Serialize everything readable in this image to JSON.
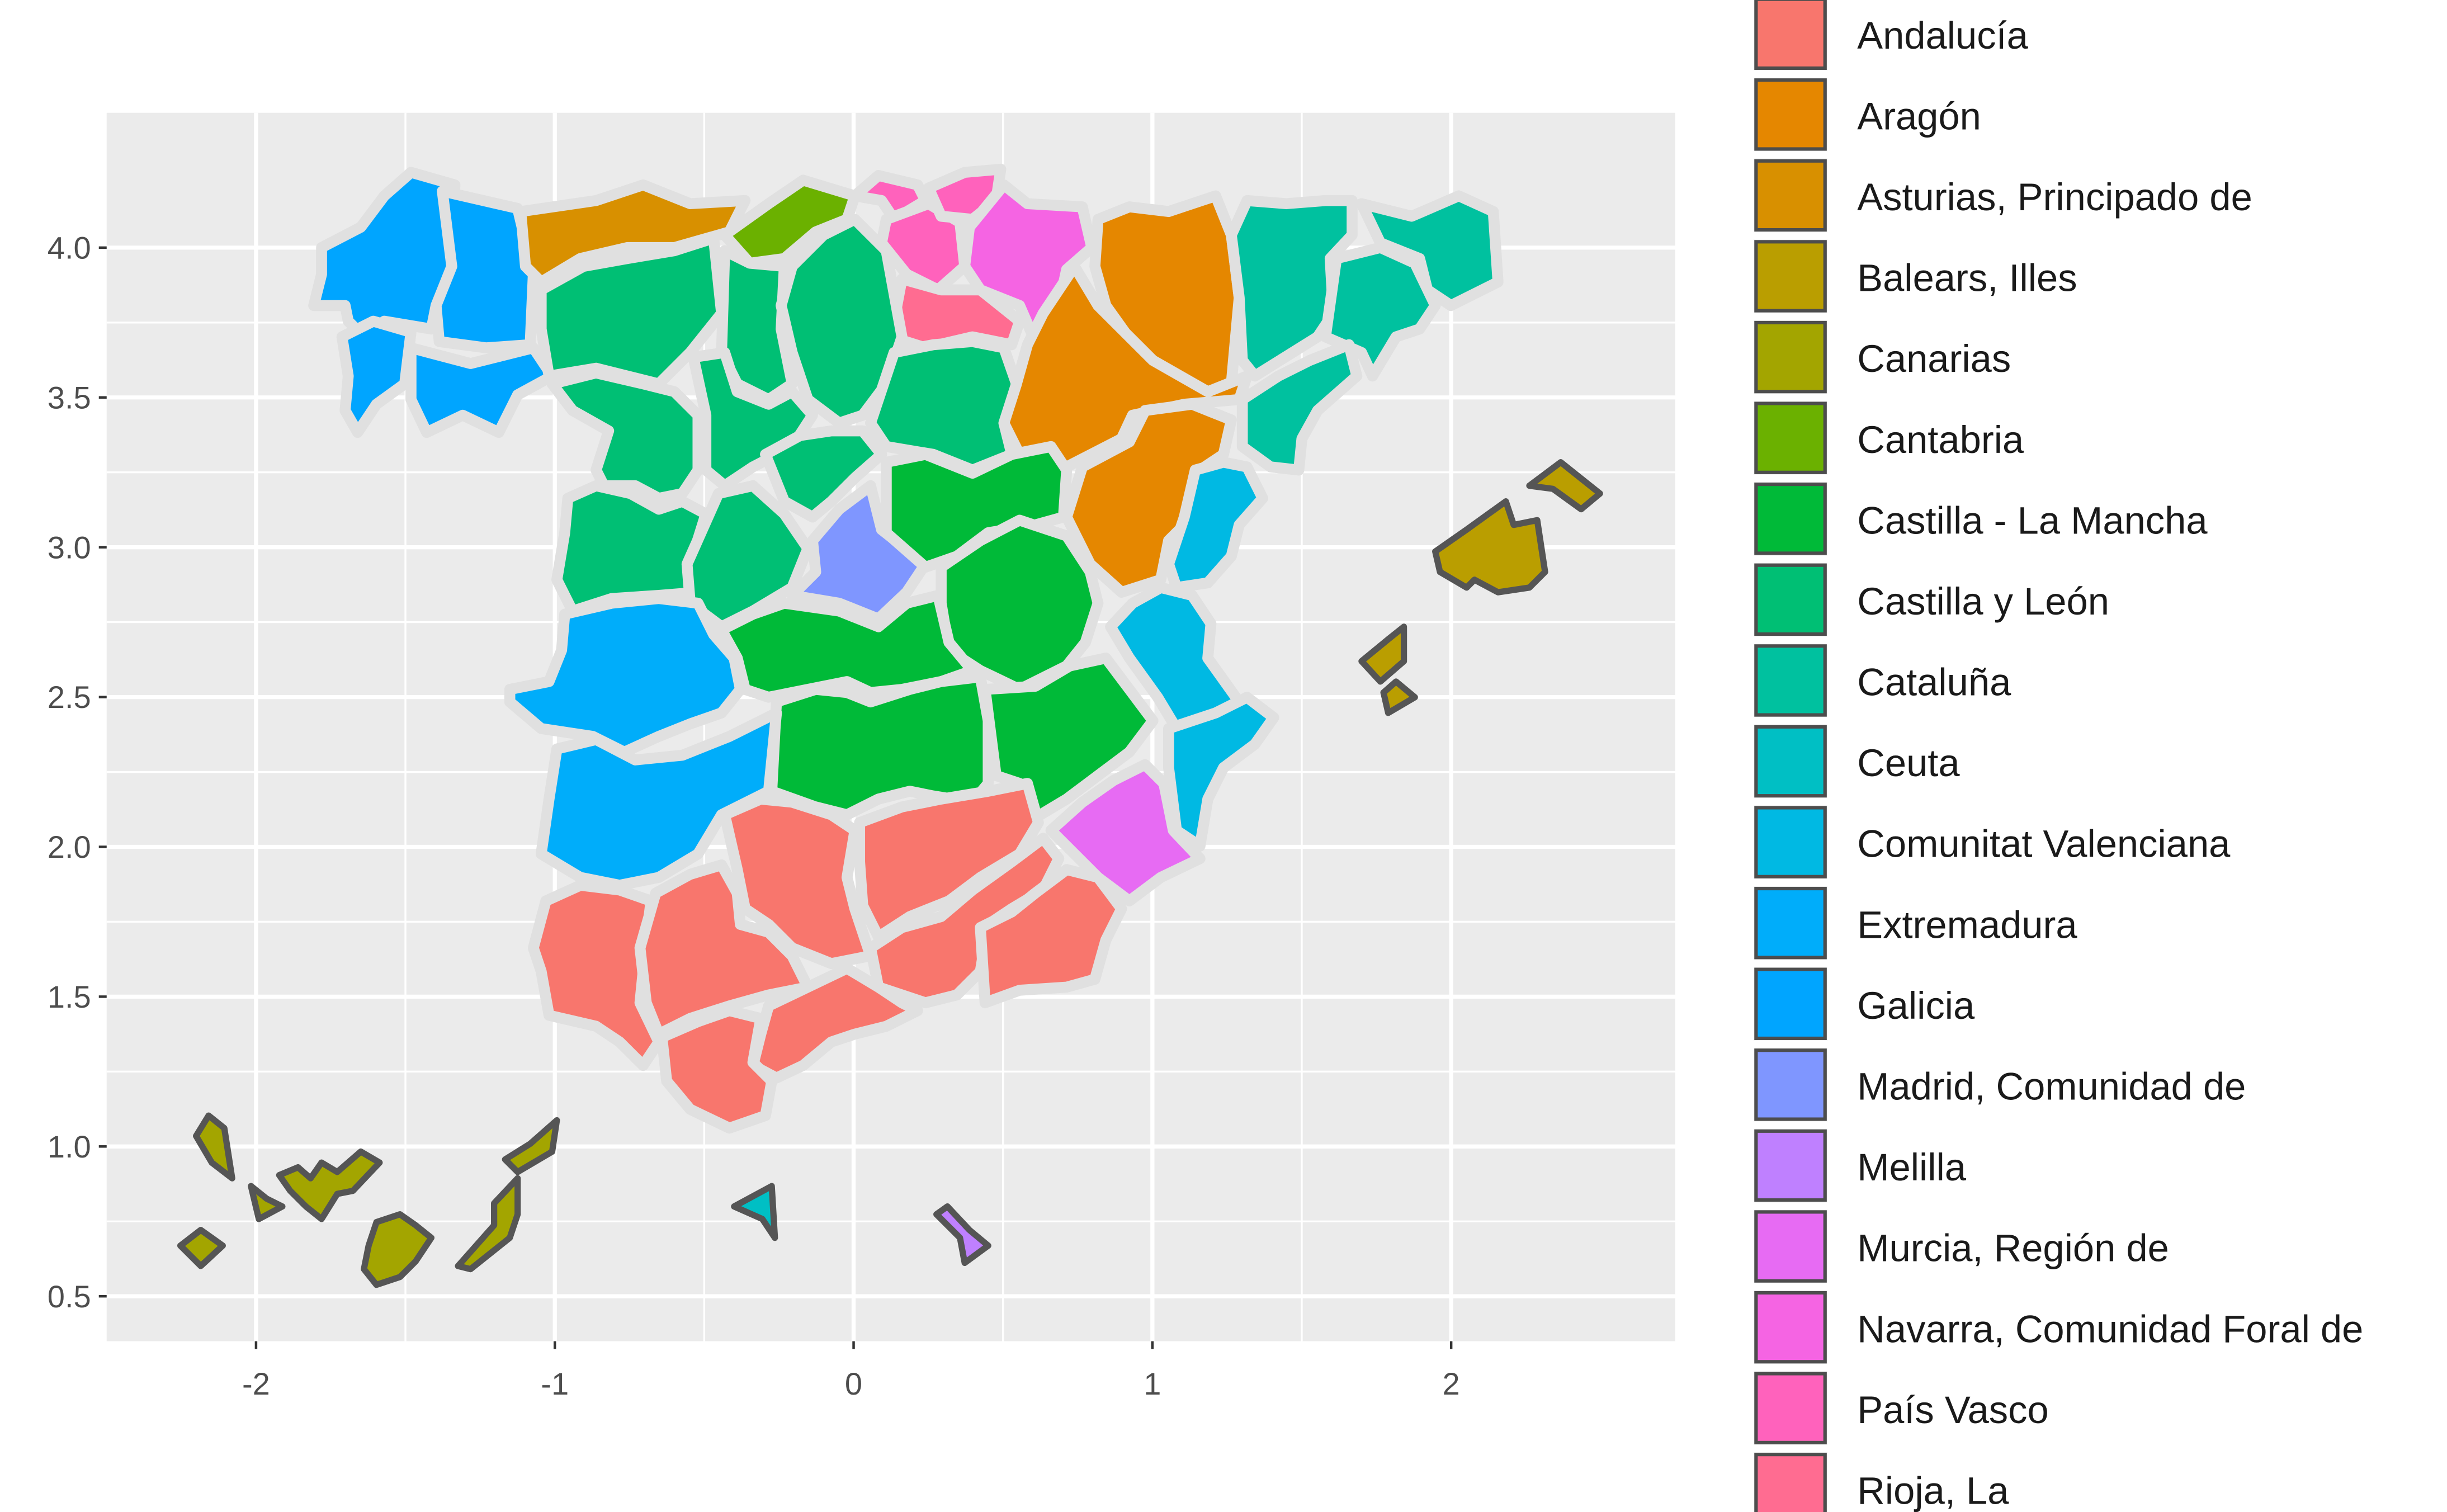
{
  "chart_data": {
    "type": "map",
    "x_ticks": [
      "-2",
      "-1",
      "0",
      "1",
      "2"
    ],
    "x_tick_values": [
      -2,
      -1,
      0,
      1,
      2
    ],
    "y_ticks": [
      "0.5",
      "1.0",
      "1.5",
      "2.0",
      "2.5",
      "3.0",
      "3.5",
      "4.0"
    ],
    "y_tick_values": [
      0.5,
      1.0,
      1.5,
      2.0,
      2.5,
      3.0,
      3.5,
      4.0
    ],
    "xlim": [
      -2.5,
      2.75
    ],
    "ylim": [
      0.35,
      4.45
    ],
    "legend_position": "right",
    "legend": [
      {
        "label": "Andalucía",
        "color": "#F8766D"
      },
      {
        "label": "Aragón",
        "color": "#E58700"
      },
      {
        "label": "Asturias, Principado de",
        "color": "#D89000"
      },
      {
        "label": "Balears, Illes",
        "color": "#BA9E00"
      },
      {
        "label": "Canarias",
        "color": "#A3A500"
      },
      {
        "label": "Cantabria",
        "color": "#6BB100"
      },
      {
        "label": "Castilla - La Mancha",
        "color": "#00BA38"
      },
      {
        "label": "Castilla y León",
        "color": "#00BF74"
      },
      {
        "label": "Cataluña",
        "color": "#00C19F"
      },
      {
        "label": "Ceuta",
        "color": "#00BFC4"
      },
      {
        "label": "Comunitat Valenciana",
        "color": "#00B9E3"
      },
      {
        "label": "Extremadura",
        "color": "#00ADFA"
      },
      {
        "label": "Galicia",
        "color": "#00A5FF"
      },
      {
        "label": "Madrid, Comunidad de",
        "color": "#7F96FF"
      },
      {
        "label": "Melilla",
        "color": "#BF80FF"
      },
      {
        "label": "Murcia, Región de",
        "color": "#E76BF3"
      },
      {
        "label": "Navarra, Comunidad Foral de",
        "color": "#F564E3"
      },
      {
        "label": "País Vasco",
        "color": "#FF62BC"
      },
      {
        "label": "Rioja, La",
        "color": "#FF6C91"
      }
    ]
  }
}
